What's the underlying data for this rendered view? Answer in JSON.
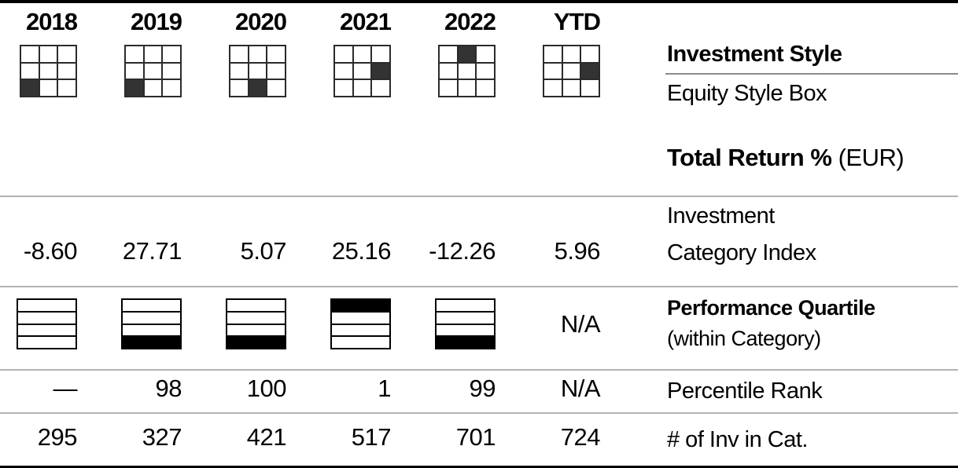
{
  "columns": [
    "2018",
    "2019",
    "2020",
    "2021",
    "2022",
    "YTD"
  ],
  "investment_style": {
    "title": "Investment Style",
    "subtitle": "Equity Style Box",
    "boxes": [
      {
        "year": "2018",
        "filled_row": 2,
        "filled_col": 0
      },
      {
        "year": "2019",
        "filled_row": 2,
        "filled_col": 0
      },
      {
        "year": "2020",
        "filled_row": 2,
        "filled_col": 1
      },
      {
        "year": "2021",
        "filled_row": 1,
        "filled_col": 2
      },
      {
        "year": "2022",
        "filled_row": 0,
        "filled_col": 1
      },
      {
        "year": "YTD",
        "filled_row": 1,
        "filled_col": 2
      }
    ]
  },
  "total_return": {
    "title": "Total Return %",
    "currency": "(EUR)",
    "row_label_1": "Investment",
    "row_label_2": "Category Index",
    "values": [
      "-8.60",
      "27.71",
      "5.07",
      "25.16",
      "-12.26",
      "5.96"
    ]
  },
  "performance_quartile": {
    "title": "Performance Quartile",
    "subtitle": "(within Category)",
    "items": [
      {
        "fill": 0
      },
      {
        "fill": 4
      },
      {
        "fill": 4
      },
      {
        "fill": 1
      },
      {
        "fill": 4
      },
      {
        "na": "N/A"
      }
    ]
  },
  "percentile_rank": {
    "label": "Percentile Rank",
    "values": [
      "—",
      "98",
      "100",
      "1",
      "99",
      "N/A"
    ]
  },
  "inv_in_cat": {
    "label": "# of Inv in Cat.",
    "values": [
      "295",
      "327",
      "421",
      "517",
      "701",
      "724"
    ]
  },
  "colors": {
    "rule_black": "#000000",
    "rule_gray": "#b3b3b3",
    "style_box_fill": "#333333",
    "quartile_fill": "#000000"
  }
}
